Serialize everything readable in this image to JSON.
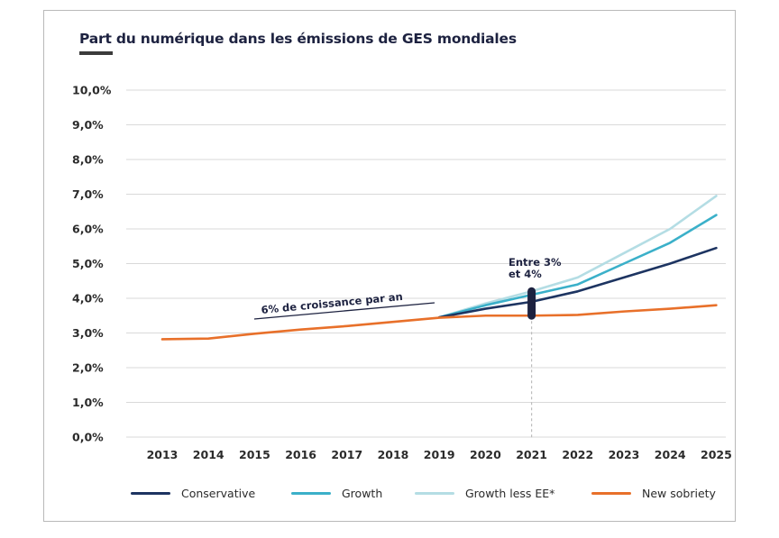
{
  "colors": {
    "Conservative": "#1d3461",
    "Growth": "#3bb0c9",
    "Growth less EE*": "#b4dde4",
    "New sobriety": "#e8702a",
    "marker": "#1d2240",
    "grid": "#d9d9d9"
  },
  "chart_data": {
    "type": "line",
    "title": "Part du numérique dans les émissions de GES mondiales",
    "xlabel": "",
    "ylabel": "",
    "x": [
      "2013",
      "2014",
      "2015",
      "2016",
      "2017",
      "2018",
      "2019",
      "2020",
      "2021",
      "2022",
      "2023",
      "2024",
      "2025"
    ],
    "yticks": [
      "0,0%",
      "1,0%",
      "2,0%",
      "3,0%",
      "4,0%",
      "5,0%",
      "6,0%",
      "7,0%",
      "8,0%",
      "9,0%",
      "10,0%"
    ],
    "ylim": [
      0,
      10
    ],
    "grid": true,
    "legend_position": "bottom",
    "series": [
      {
        "name": "Growth less EE*",
        "x": [
          2019,
          2020,
          2021,
          2022,
          2023,
          2024,
          2025
        ],
        "values": [
          3.45,
          3.85,
          4.2,
          4.6,
          5.3,
          6.0,
          6.95
        ]
      },
      {
        "name": "Growth",
        "x": [
          2019,
          2020,
          2021,
          2022,
          2023,
          2024,
          2025
        ],
        "values": [
          3.45,
          3.8,
          4.1,
          4.4,
          5.0,
          5.6,
          6.4
        ]
      },
      {
        "name": "Conservative",
        "x": [
          2019,
          2020,
          2021,
          2022,
          2023,
          2024,
          2025
        ],
        "values": [
          3.45,
          3.7,
          3.9,
          4.2,
          4.6,
          5.0,
          5.45
        ]
      },
      {
        "name": "New sobriety",
        "x": [
          2013,
          2014,
          2015,
          2016,
          2017,
          2018,
          2019,
          2020,
          2021,
          2022,
          2023,
          2024,
          2025
        ],
        "values": [
          2.82,
          2.84,
          2.98,
          3.1,
          3.2,
          3.32,
          3.44,
          3.5,
          3.5,
          3.52,
          3.62,
          3.7,
          3.8
        ]
      }
    ],
    "annotations": [
      {
        "text": "6% de croissance par an"
      },
      {
        "text_lines": [
          "Entre 3%",
          "et 4%"
        ],
        "x": 2021,
        "range": [
          3.5,
          4.2
        ]
      }
    ]
  }
}
